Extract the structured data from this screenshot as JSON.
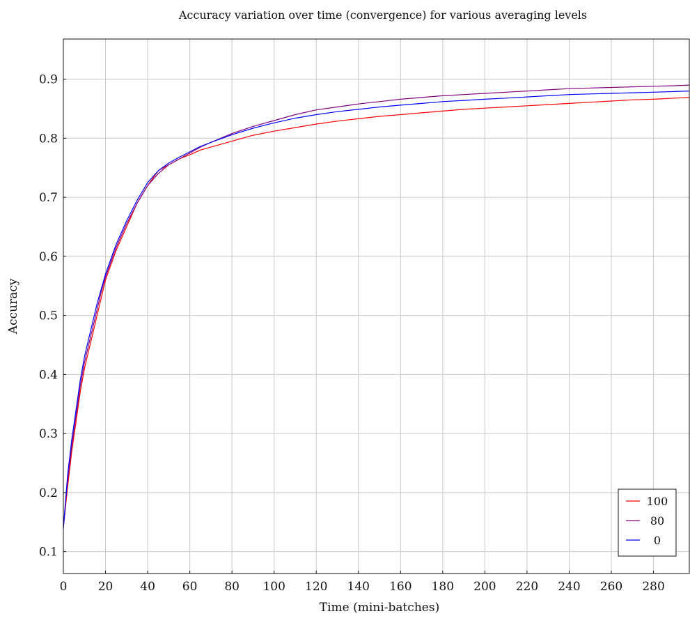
{
  "chart_data": {
    "type": "line",
    "title": "Accuracy variation over time (convergence) for various averaging levels",
    "xlabel": "Time (mini-batches)",
    "ylabel": "Accuracy",
    "xlim": [
      0,
      297
    ],
    "ylim": [
      0.063,
      0.968
    ],
    "x_ticks": [
      0,
      20,
      40,
      60,
      80,
      100,
      120,
      140,
      160,
      180,
      200,
      220,
      240,
      260,
      280
    ],
    "y_ticks": [
      0.1,
      0.2,
      0.3,
      0.4,
      0.5,
      0.6,
      0.7,
      0.8,
      0.9
    ],
    "grid": true,
    "legend_position": "bottom-right",
    "series": [
      {
        "name": "100",
        "color": "#ff0000",
        "x": [
          0,
          2,
          4,
          6,
          8,
          10,
          12,
          14,
          16,
          18,
          20,
          25,
          30,
          35,
          40,
          45,
          50,
          55,
          60,
          65,
          70,
          80,
          90,
          100,
          110,
          120,
          130,
          140,
          150,
          160,
          170,
          180,
          190,
          200,
          210,
          220,
          230,
          240,
          250,
          260,
          270,
          280,
          290,
          297
        ],
        "y": [
          0.14,
          0.21,
          0.27,
          0.32,
          0.37,
          0.41,
          0.44,
          0.47,
          0.5,
          0.53,
          0.56,
          0.61,
          0.65,
          0.69,
          0.72,
          0.745,
          0.755,
          0.765,
          0.772,
          0.78,
          0.785,
          0.795,
          0.805,
          0.812,
          0.818,
          0.824,
          0.829,
          0.833,
          0.837,
          0.84,
          0.843,
          0.846,
          0.849,
          0.851,
          0.853,
          0.855,
          0.857,
          0.859,
          0.861,
          0.863,
          0.865,
          0.866,
          0.868,
          0.869
        ]
      },
      {
        "name": "80",
        "color": "#800080",
        "x": [
          0,
          2,
          4,
          6,
          8,
          10,
          12,
          14,
          16,
          18,
          20,
          25,
          30,
          35,
          40,
          45,
          50,
          55,
          60,
          65,
          70,
          80,
          90,
          100,
          110,
          120,
          130,
          140,
          150,
          160,
          170,
          180,
          190,
          200,
          210,
          220,
          230,
          240,
          250,
          260,
          270,
          280,
          290,
          297
        ],
        "y": [
          0.14,
          0.22,
          0.28,
          0.33,
          0.38,
          0.42,
          0.45,
          0.48,
          0.51,
          0.54,
          0.565,
          0.615,
          0.655,
          0.69,
          0.72,
          0.74,
          0.755,
          0.765,
          0.775,
          0.785,
          0.793,
          0.808,
          0.82,
          0.83,
          0.84,
          0.848,
          0.853,
          0.858,
          0.862,
          0.866,
          0.869,
          0.872,
          0.874,
          0.876,
          0.878,
          0.88,
          0.882,
          0.884,
          0.885,
          0.886,
          0.887,
          0.888,
          0.889,
          0.89
        ]
      },
      {
        "name": "0",
        "color": "#0000ff",
        "x": [
          0,
          2,
          4,
          6,
          8,
          10,
          12,
          14,
          16,
          18,
          20,
          25,
          30,
          35,
          40,
          45,
          50,
          55,
          60,
          65,
          70,
          80,
          90,
          100,
          110,
          120,
          130,
          140,
          150,
          160,
          170,
          180,
          190,
          200,
          210,
          220,
          230,
          240,
          250,
          260,
          270,
          280,
          290,
          297
        ],
        "y": [
          0.14,
          0.23,
          0.29,
          0.34,
          0.39,
          0.43,
          0.46,
          0.49,
          0.52,
          0.545,
          0.57,
          0.62,
          0.66,
          0.695,
          0.725,
          0.745,
          0.758,
          0.768,
          0.777,
          0.786,
          0.793,
          0.806,
          0.817,
          0.826,
          0.834,
          0.84,
          0.845,
          0.849,
          0.853,
          0.856,
          0.859,
          0.862,
          0.864,
          0.866,
          0.868,
          0.87,
          0.872,
          0.874,
          0.875,
          0.876,
          0.877,
          0.878,
          0.879,
          0.88
        ]
      }
    ]
  }
}
